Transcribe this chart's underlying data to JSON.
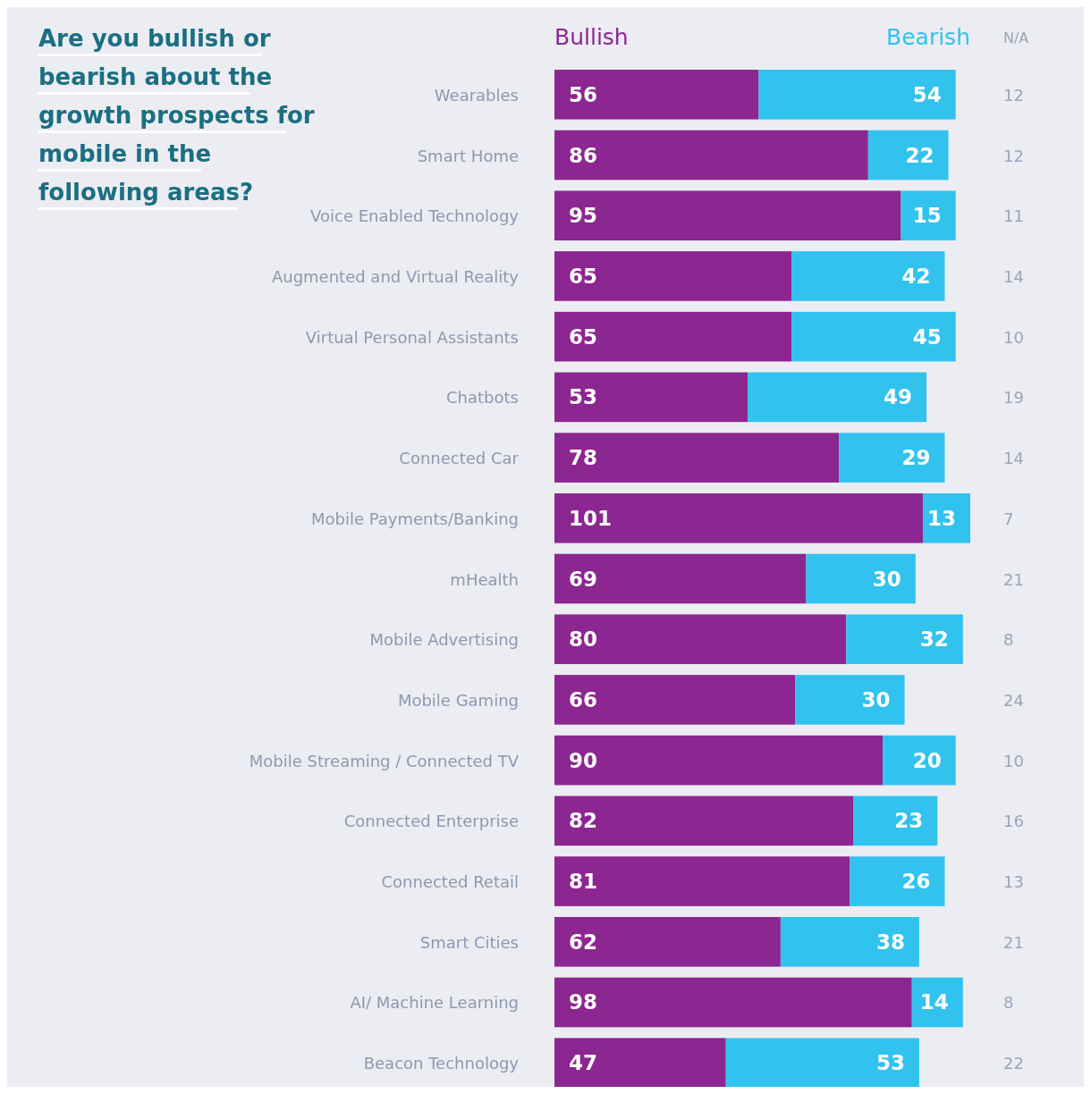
{
  "chart_data": {
    "type": "bar",
    "orientation": "horizontal",
    "stacked": true,
    "legend": "top",
    "data_labels": true,
    "title": "Are you bullish or bearish about the growth prospects for mobile in the following areas?",
    "categories": [
      "Wearables",
      "Smart Home",
      "Voice Enabled Technology",
      "Augmented and Virtual Reality",
      "Virtual Personal Assistants",
      "Chatbots",
      "Connected Car",
      "Mobile Payments/Banking",
      "mHealth",
      "Mobile Advertising",
      "Mobile Gaming",
      "Mobile Streaming / Connected TV",
      "Connected Enterprise",
      "Connected Retail",
      "Smart Cities",
      "AI/ Machine Learning",
      "Beacon Technology"
    ],
    "series": [
      {
        "name": "Bullish",
        "color": "#8c2690",
        "values": [
          56,
          86,
          95,
          65,
          65,
          53,
          78,
          101,
          69,
          80,
          66,
          90,
          82,
          81,
          62,
          98,
          47
        ]
      },
      {
        "name": "Bearish",
        "color": "#31c3ee",
        "values": [
          54,
          22,
          15,
          42,
          45,
          49,
          29,
          13,
          30,
          32,
          30,
          20,
          23,
          26,
          38,
          14,
          53
        ]
      },
      {
        "name": "N/A",
        "color": "#9aa5b8",
        "values": [
          null,
          null,
          null,
          null,
          null,
          null,
          null,
          null,
          null,
          null,
          null,
          null,
          null,
          null,
          null,
          null,
          null
        ],
        "value_labels": [
          "12",
          "12",
          "11",
          "14",
          "10",
          "19",
          "14",
          "7",
          "21",
          "8",
          "24",
          "10",
          "16",
          "13",
          "21",
          "8",
          "22"
        ]
      }
    ]
  }
}
